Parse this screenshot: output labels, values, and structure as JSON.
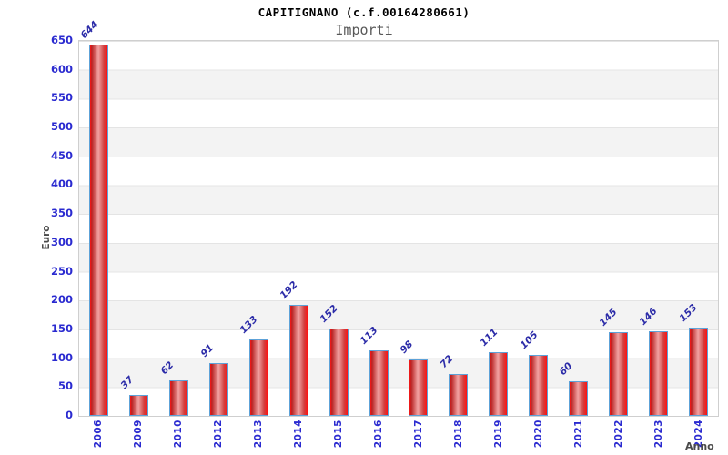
{
  "header": {
    "title": "CAPITIGNANO (c.f.00164280661)",
    "subtitle": "Importi"
  },
  "chart_data": {
    "type": "bar",
    "title": "CAPITIGNANO (c.f.00164280661)",
    "subtitle": "Importi",
    "xlabel": "Anno",
    "ylabel": "Euro",
    "categories": [
      "2006",
      "2009",
      "2010",
      "2012",
      "2013",
      "2014",
      "2015",
      "2016",
      "2017",
      "2018",
      "2019",
      "2020",
      "2021",
      "2022",
      "2023",
      "2024"
    ],
    "values": [
      644,
      37,
      62,
      91,
      133,
      192,
      152,
      113,
      98,
      72,
      111,
      105,
      60,
      145,
      146,
      153
    ],
    "ylim": [
      0,
      650
    ],
    "yticks": [
      0,
      50,
      100,
      150,
      200,
      250,
      300,
      350,
      400,
      450,
      500,
      550,
      600,
      650
    ],
    "grid": true,
    "band_alternate": true,
    "legend_position": "none"
  },
  "colors": {
    "bar_fill_left": "#b82323",
    "bar_fill_center": "#f2a2a2",
    "bar_fill_right": "#ff1111",
    "bar_border": "#5da2d8",
    "tick_label": "#2a2ad0",
    "value_label": "#2b2ba8",
    "band_gray": "#f3f3f3",
    "gridline": "#e4e4e4",
    "plot_border": "#cfcfcf",
    "title_color": "#000000",
    "subtitle_color": "#585858",
    "axis_label_color": "#4a4a4a"
  }
}
